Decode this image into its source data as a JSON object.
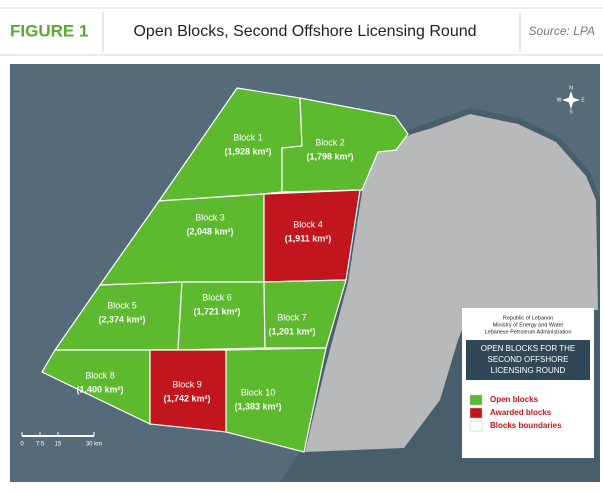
{
  "header": {
    "figure_label": "FIGURE 1",
    "title": "Open Blocks, Second Offshore Licensing Round",
    "source": "Source: LPA"
  },
  "map": {
    "blocks": [
      {
        "name": "Block 1",
        "area": "(1,928 km²)",
        "color": "#5dba2f"
      },
      {
        "name": "Block 2",
        "area": "(1,798 km²)",
        "color": "#5dba2f"
      },
      {
        "name": "Block 3",
        "area": "(2,048 km²)",
        "color": "#5dba2f"
      },
      {
        "name": "Block 4",
        "area": "(1,911 km²)",
        "color": "#c1161d"
      },
      {
        "name": "Block 5",
        "area": "(2,374 km²)",
        "color": "#5dba2f"
      },
      {
        "name": "Block 6",
        "area": "(1,721 km²)",
        "color": "#5dba2f"
      },
      {
        "name": "Block 7",
        "area": "(1,201 km²)",
        "color": "#5dba2f"
      },
      {
        "name": "Block 8",
        "area": "(1,400 km²)",
        "color": "#5dba2f"
      },
      {
        "name": "Block 9",
        "area": "(1,742 km²)",
        "color": "#c1161d"
      },
      {
        "name": "Block 10",
        "area": "(1,383 km²)",
        "color": "#5dba2f"
      }
    ],
    "legend": {
      "org_lines": [
        "Republic of Lebanon",
        "Ministry of Energy and Water",
        "Lebanese Petroleum Administration"
      ],
      "title_lines": [
        "OPEN BLOCKS FOR THE",
        "SECOND OFFSHORE",
        "LICENSING ROUND"
      ],
      "items": [
        {
          "label": "Open blocks",
          "color": "#5dba2f"
        },
        {
          "label": "Awarded blocks",
          "color": "#c1161d"
        },
        {
          "label": "Blocks boundaries",
          "color": "#ffffff"
        }
      ]
    },
    "scale_bar": [
      "0",
      "7.5",
      "15",
      "30 km"
    ],
    "compass": [
      "N",
      "S",
      "E",
      "W"
    ]
  }
}
